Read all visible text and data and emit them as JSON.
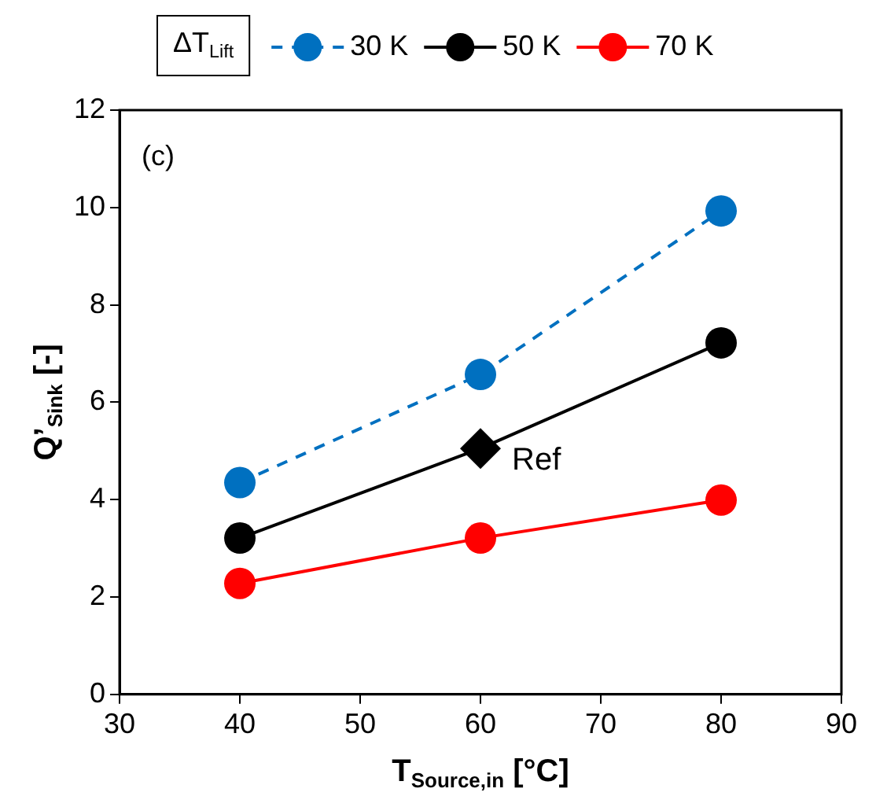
{
  "chart_data": {
    "type": "line",
    "xlabel": "T$_{Source,in}$ [°C]",
    "ylabel": "Q’$_{Sink}$ [-]",
    "legend_title": "ΔT$_{Lift}$",
    "x": [
      40,
      60,
      80
    ],
    "series": [
      {
        "name": "30 K",
        "color": "#0070c0",
        "values": [
          4.35,
          6.57,
          9.93
        ],
        "line_style": "dashed"
      },
      {
        "name": "50 K",
        "color": "#000000",
        "values": [
          3.21,
          5.05,
          7.22
        ],
        "line_style": "solid"
      },
      {
        "name": "70 K",
        "color": "#ff0000",
        "values": [
          2.28,
          3.21,
          3.99
        ],
        "line_style": "solid"
      },
      {
        "type": "scatter",
        "color": "#000000",
        "x": [
          60
        ],
        "values": [
          5.05
        ],
        "marker": "diamond"
      }
    ],
    "marker": "circle",
    "xlim": [
      30,
      90
    ],
    "xticks": [
      30,
      40,
      50,
      60,
      70,
      80,
      90
    ],
    "ylim": [
      0,
      12
    ],
    "yticks": [
      0,
      2,
      4,
      6,
      8,
      10,
      12
    ],
    "grid": false,
    "legend": "top",
    "annotations": [
      "(c)",
      {
        "text": "Ref",
        "x": 60,
        "y": 5.05
      }
    ]
  }
}
